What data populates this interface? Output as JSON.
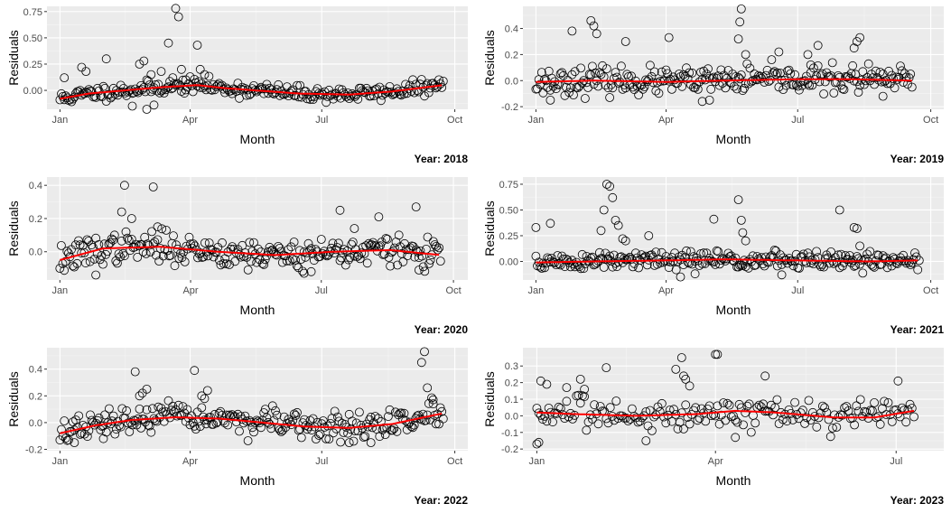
{
  "chart_data": [
    {
      "type": "scatter",
      "caption": "Year: 2018",
      "xlabel": "Month",
      "ylabel": "Residuals",
      "x_ticks": [
        "Jan",
        "Apr",
        "Jul",
        "Oct"
      ],
      "x_tick_days": [
        0,
        90,
        181,
        273
      ],
      "xlim": [
        -9,
        282
      ],
      "y_ticks": [
        "0.00",
        "0.25",
        "0.50",
        "0.75"
      ],
      "y_tick_values": [
        0,
        0.25,
        0.5,
        0.75
      ],
      "ylim": [
        -0.18,
        0.8
      ],
      "x_range": [
        0,
        265
      ],
      "seed": 11,
      "noise": 0.035,
      "trend": [
        [
          0,
          -0.08
        ],
        [
          20,
          -0.03
        ],
        [
          45,
          0.0
        ],
        [
          70,
          0.03
        ],
        [
          95,
          0.05
        ],
        [
          115,
          0.02
        ],
        [
          135,
          0.0
        ],
        [
          165,
          -0.03
        ],
        [
          200,
          -0.04
        ],
        [
          230,
          -0.01
        ],
        [
          265,
          0.05
        ]
      ],
      "outliers": [
        [
          3,
          0.12
        ],
        [
          15,
          0.22
        ],
        [
          18,
          0.18
        ],
        [
          32,
          0.3
        ],
        [
          55,
          0.25
        ],
        [
          58,
          0.28
        ],
        [
          63,
          0.15
        ],
        [
          70,
          0.18
        ],
        [
          75,
          0.45
        ],
        [
          78,
          0.12
        ],
        [
          80,
          0.78
        ],
        [
          82,
          0.7
        ],
        [
          84,
          0.2
        ],
        [
          87,
          0.1
        ],
        [
          95,
          0.43
        ],
        [
          97,
          0.2
        ],
        [
          100,
          0.15
        ],
        [
          50,
          -0.15
        ],
        [
          60,
          -0.18
        ],
        [
          65,
          -0.14
        ]
      ]
    },
    {
      "type": "scatter",
      "caption": "Year: 2019",
      "xlabel": "Month",
      "ylabel": "Residuals",
      "x_ticks": [
        "Jan",
        "Apr",
        "Jul",
        "Oct"
      ],
      "x_tick_days": [
        0,
        90,
        181,
        273
      ],
      "xlim": [
        -9,
        282
      ],
      "y_ticks": [
        "-0.2",
        "0.0",
        "0.2",
        "0.4"
      ],
      "y_tick_values": [
        -0.2,
        0,
        0.2,
        0.4
      ],
      "ylim": [
        -0.22,
        0.57
      ],
      "x_range": [
        0,
        260
      ],
      "seed": 23,
      "noise": 0.05,
      "trend": [
        [
          0,
          -0.01
        ],
        [
          40,
          0.0
        ],
        [
          90,
          -0.01
        ],
        [
          130,
          0.0
        ],
        [
          180,
          0.01
        ],
        [
          220,
          0.01
        ],
        [
          260,
          0.0
        ]
      ],
      "outliers": [
        [
          25,
          0.38
        ],
        [
          38,
          0.46
        ],
        [
          40,
          0.42
        ],
        [
          42,
          0.36
        ],
        [
          62,
          0.3
        ],
        [
          92,
          0.33
        ],
        [
          140,
          0.32
        ],
        [
          141,
          0.45
        ],
        [
          142,
          0.55
        ],
        [
          145,
          0.2
        ],
        [
          168,
          0.22
        ],
        [
          188,
          0.2
        ],
        [
          190,
          0.12
        ],
        [
          195,
          0.27
        ],
        [
          220,
          0.25
        ],
        [
          222,
          0.3
        ],
        [
          224,
          0.33
        ],
        [
          10,
          -0.15
        ],
        [
          115,
          -0.16
        ],
        [
          120,
          -0.15
        ],
        [
          240,
          -0.12
        ]
      ]
    },
    {
      "type": "scatter",
      "caption": "Year: 2020",
      "xlabel": "Month",
      "ylabel": "Residuals",
      "x_ticks": [
        "Jan",
        "Apr",
        "Jul",
        "Oct"
      ],
      "x_tick_days": [
        0,
        91,
        182,
        274
      ],
      "xlim": [
        -9,
        284
      ],
      "y_ticks": [
        "0.0",
        "0.2",
        "0.4"
      ],
      "y_tick_values": [
        0,
        0.2,
        0.4
      ],
      "ylim": [
        -0.17,
        0.45
      ],
      "x_range": [
        0,
        265
      ],
      "seed": 37,
      "noise": 0.045,
      "trend": [
        [
          0,
          -0.05
        ],
        [
          30,
          0.02
        ],
        [
          70,
          0.03
        ],
        [
          110,
          0.0
        ],
        [
          150,
          -0.02
        ],
        [
          190,
          0.0
        ],
        [
          230,
          0.01
        ],
        [
          265,
          -0.02
        ]
      ],
      "outliers": [
        [
          45,
          0.4
        ],
        [
          43,
          0.24
        ],
        [
          50,
          0.2
        ],
        [
          65,
          0.39
        ],
        [
          68,
          0.15
        ],
        [
          195,
          0.25
        ],
        [
          205,
          0.14
        ],
        [
          222,
          0.21
        ],
        [
          248,
          0.27
        ],
        [
          25,
          -0.14
        ],
        [
          170,
          -0.13
        ],
        [
          175,
          -0.12
        ],
        [
          250,
          -0.11
        ]
      ]
    },
    {
      "type": "scatter",
      "caption": "Year: 2021",
      "xlabel": "Month",
      "ylabel": "Residuals",
      "x_ticks": [
        "Jan",
        "Apr",
        "Jul",
        "Oct"
      ],
      "x_tick_days": [
        0,
        90,
        181,
        273
      ],
      "xlim": [
        -9,
        282
      ],
      "y_ticks": [
        "0.00",
        "0.25",
        "0.50",
        "0.75"
      ],
      "y_tick_values": [
        0,
        0.25,
        0.5,
        0.75
      ],
      "ylim": [
        -0.18,
        0.82
      ],
      "x_range": [
        0,
        265
      ],
      "seed": 51,
      "noise": 0.045,
      "trend": [
        [
          0,
          -0.01
        ],
        [
          40,
          0.0
        ],
        [
          90,
          0.01
        ],
        [
          130,
          0.02
        ],
        [
          180,
          0.01
        ],
        [
          230,
          0.0
        ],
        [
          265,
          0.01
        ]
      ],
      "outliers": [
        [
          0,
          0.33
        ],
        [
          10,
          0.37
        ],
        [
          45,
          0.3
        ],
        [
          47,
          0.5
        ],
        [
          49,
          0.75
        ],
        [
          51,
          0.73
        ],
        [
          53,
          0.62
        ],
        [
          55,
          0.4
        ],
        [
          57,
          0.35
        ],
        [
          60,
          0.22
        ],
        [
          62,
          0.2
        ],
        [
          78,
          0.25
        ],
        [
          123,
          0.41
        ],
        [
          140,
          0.6
        ],
        [
          142,
          0.4
        ],
        [
          143,
          0.28
        ],
        [
          145,
          0.2
        ],
        [
          210,
          0.5
        ],
        [
          220,
          0.33
        ],
        [
          222,
          0.32
        ],
        [
          224,
          0.15
        ],
        [
          100,
          -0.15
        ],
        [
          110,
          -0.12
        ],
        [
          170,
          -0.13
        ]
      ]
    },
    {
      "type": "scatter",
      "caption": "Year: 2022",
      "xlabel": "Month",
      "ylabel": "Residuals",
      "x_ticks": [
        "Jan",
        "Apr",
        "Jul",
        "Oct"
      ],
      "x_tick_days": [
        0,
        90,
        181,
        273
      ],
      "xlim": [
        -9,
        282
      ],
      "y_ticks": [
        "-0.2",
        "0.0",
        "0.2",
        "0.4"
      ],
      "y_tick_values": [
        -0.2,
        0,
        0.2,
        0.4
      ],
      "ylim": [
        -0.21,
        0.56
      ],
      "x_range": [
        0,
        265
      ],
      "seed": 67,
      "noise": 0.05,
      "trend": [
        [
          0,
          -0.08
        ],
        [
          25,
          -0.02
        ],
        [
          50,
          0.02
        ],
        [
          80,
          0.04
        ],
        [
          110,
          0.03
        ],
        [
          140,
          0.0
        ],
        [
          170,
          -0.03
        ],
        [
          200,
          -0.04
        ],
        [
          230,
          -0.01
        ],
        [
          265,
          0.07
        ]
      ],
      "outliers": [
        [
          52,
          0.38
        ],
        [
          55,
          0.2
        ],
        [
          57,
          0.22
        ],
        [
          60,
          0.25
        ],
        [
          93,
          0.39
        ],
        [
          98,
          0.2
        ],
        [
          100,
          0.18
        ],
        [
          102,
          0.24
        ],
        [
          250,
          0.45
        ],
        [
          252,
          0.53
        ],
        [
          254,
          0.26
        ],
        [
          258,
          0.17
        ],
        [
          10,
          -0.15
        ],
        [
          30,
          -0.12
        ],
        [
          200,
          -0.15
        ],
        [
          215,
          -0.15
        ]
      ]
    },
    {
      "type": "scatter",
      "caption": "Year: 2023",
      "xlabel": "Month",
      "ylabel": "Residuals",
      "x_ticks": [
        "Jan",
        "Apr",
        "Jul"
      ],
      "x_tick_days": [
        0,
        90,
        181
      ],
      "xlim": [
        -7,
        205
      ],
      "y_ticks": [
        "-0.2",
        "-0.1",
        "0.0",
        "0.1",
        "0.2",
        "0.3"
      ],
      "y_tick_values": [
        -0.2,
        -0.1,
        0,
        0.1,
        0.2,
        0.3
      ],
      "ylim": [
        -0.21,
        0.41
      ],
      "x_range": [
        0,
        190
      ],
      "seed": 83,
      "noise": 0.045,
      "trend": [
        [
          0,
          0.02
        ],
        [
          20,
          0.01
        ],
        [
          50,
          0.0
        ],
        [
          80,
          0.01
        ],
        [
          100,
          0.03
        ],
        [
          120,
          0.02
        ],
        [
          150,
          -0.01
        ],
        [
          170,
          -0.01
        ],
        [
          190,
          0.03
        ]
      ],
      "outliers": [
        [
          2,
          0.21
        ],
        [
          5,
          0.19
        ],
        [
          15,
          0.17
        ],
        [
          22,
          0.22
        ],
        [
          24,
          0.16
        ],
        [
          35,
          0.29
        ],
        [
          70,
          0.28
        ],
        [
          73,
          0.35
        ],
        [
          74,
          0.24
        ],
        [
          75,
          0.22
        ],
        [
          77,
          0.18
        ],
        [
          90,
          0.37
        ],
        [
          91,
          0.37
        ],
        [
          115,
          0.24
        ],
        [
          182,
          0.21
        ],
        [
          0,
          -0.17
        ],
        [
          1,
          -0.16
        ],
        [
          55,
          -0.15
        ],
        [
          100,
          -0.13
        ]
      ]
    }
  ]
}
